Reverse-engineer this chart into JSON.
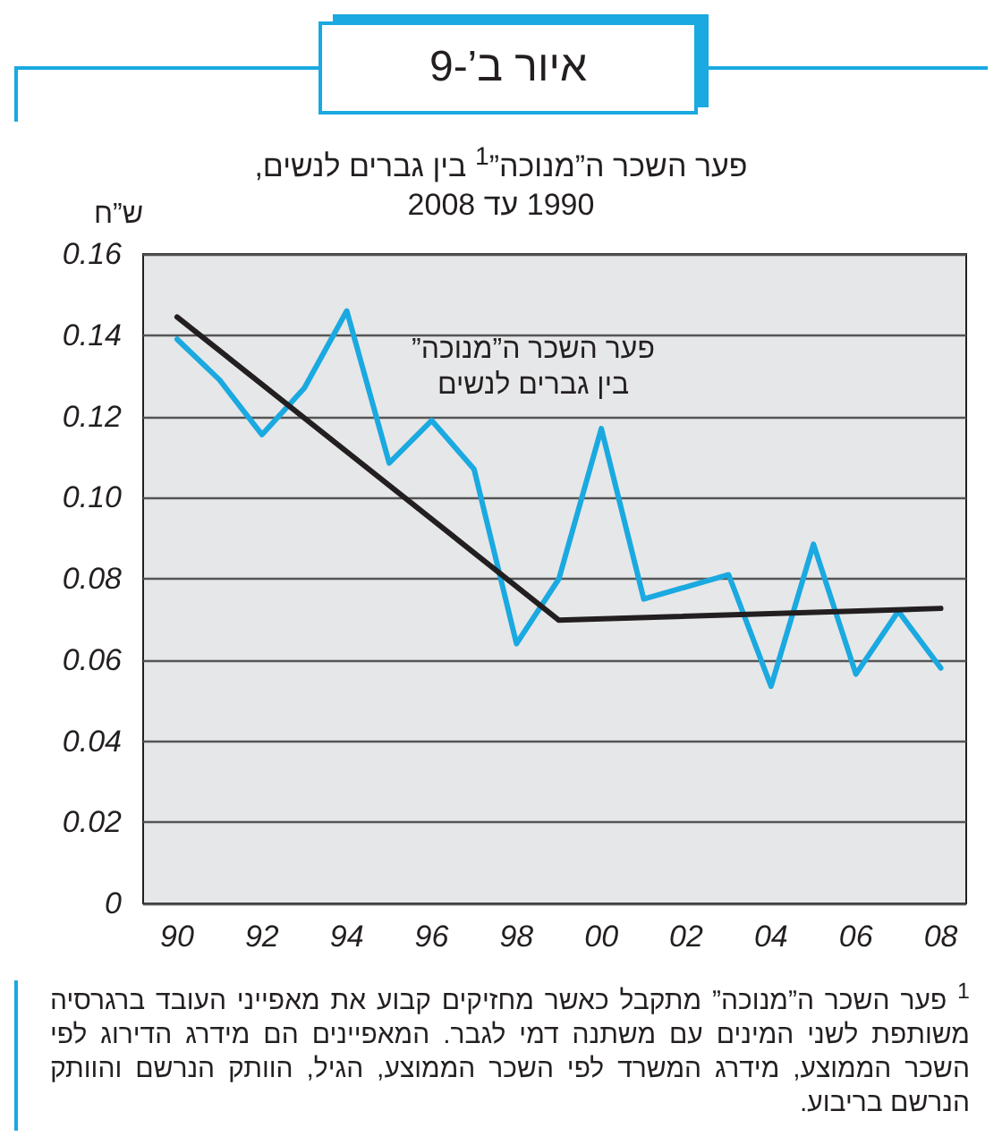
{
  "chart_data": {
    "type": "line",
    "title": "איור ב’-9",
    "subtitle": "פער השכר ה”מנוכה”$^{1}$ בין גברים לנשים,\n1990 עד 2008",
    "ylabel": "ש”ח",
    "annotations": [
      "$^{1}$ פער השכר ה”מנוכה” מתקבל כאשר מחזיקים קבוע את מאפייני העובד ברגרסיה משותפת לשני המינים עם משתנה דמי לגבר. המאפיינים הם מידרג הדירוג לפי השכר הממוצע, מידרג המשרד לפי השכר הממוצע, הגיל, הוותק הנרשם והוותק הנרשם בריבוע."
    ],
    "x": [
      1990,
      1991,
      1992,
      1993,
      1994,
      1995,
      1996,
      1997,
      1998,
      1999,
      2000,
      2001,
      2002,
      2003,
      2004,
      2005,
      2006,
      2007,
      2008
    ],
    "series": [
      {
        "name": "פער השכר ה”מנוכה”\nבין גברים לנשים",
        "color": "#1aa9e0",
        "values": [
          0.139,
          0.129,
          0.1155,
          0.127,
          0.146,
          0.1085,
          0.119,
          0.107,
          0.064,
          0.08,
          0.117,
          0.075,
          0.078,
          0.081,
          0.0535,
          0.0885,
          0.0565,
          0.072,
          0.058
        ]
      },
      {
        "color": "#231f20",
        "x": [
          1990,
          1999,
          2008
        ],
        "values": [
          0.1445,
          0.0698,
          0.0727
        ]
      }
    ],
    "xlim": [
      1989.2,
      2008.6
    ],
    "xticks": [
      {
        "value": 1990,
        "label": "90"
      },
      {
        "value": 1992,
        "label": "92"
      },
      {
        "value": 1994,
        "label": "94"
      },
      {
        "value": 1996,
        "label": "96"
      },
      {
        "value": 1998,
        "label": "98"
      },
      {
        "value": 2000,
        "label": "00"
      },
      {
        "value": 2002,
        "label": "02"
      },
      {
        "value": 2004,
        "label": "04"
      },
      {
        "value": 2006,
        "label": "06"
      },
      {
        "value": 2008,
        "label": "08"
      }
    ],
    "ylim": [
      0,
      0.16
    ],
    "yticks": [
      0,
      0.02,
      0.04,
      0.06,
      0.08,
      {
        "value": 0.1,
        "label": "0.10"
      },
      0.12,
      0.14,
      0.16
    ],
    "grid": "y",
    "marker": "none",
    "line_style": "solid",
    "legend": false
  }
}
